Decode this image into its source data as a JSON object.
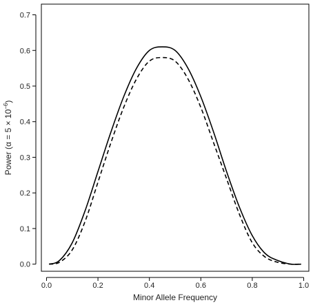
{
  "chart_data": {
    "type": "line",
    "title": "",
    "xlabel": "Minor Allele Frequency",
    "ylabel": "Power (α = 5 × 10⁻⁶)",
    "ylabel_parts": {
      "prefix": "Power (",
      "alpha": "α",
      "eq": " = 5 × 10",
      "exp": "−6",
      "suffix": ")"
    },
    "xlim": [
      -0.02,
      1.02
    ],
    "ylim": [
      -0.02,
      0.73
    ],
    "xticks": [
      "0.0",
      "0.2",
      "0.4",
      "0.6",
      "0.8",
      "1.0"
    ],
    "yticks": [
      "0.0",
      "0.1",
      "0.2",
      "0.3",
      "0.4",
      "0.5",
      "0.6",
      "0.7"
    ],
    "grid": false,
    "series": [
      {
        "style": "solid",
        "color": "#000000",
        "x": [
          0.01,
          0.05,
          0.1,
          0.15,
          0.2,
          0.25,
          0.3,
          0.35,
          0.4,
          0.45,
          0.5,
          0.55,
          0.6,
          0.65,
          0.7,
          0.75,
          0.8,
          0.85,
          0.9,
          0.95,
          0.99
        ],
        "y": [
          0.0,
          0.01,
          0.06,
          0.15,
          0.26,
          0.37,
          0.47,
          0.55,
          0.6,
          0.61,
          0.6,
          0.55,
          0.47,
          0.37,
          0.26,
          0.16,
          0.08,
          0.03,
          0.01,
          0.0,
          0.0
        ]
      },
      {
        "style": "dashed",
        "color": "#000000",
        "x": [
          0.01,
          0.05,
          0.1,
          0.15,
          0.2,
          0.25,
          0.3,
          0.35,
          0.4,
          0.45,
          0.5,
          0.55,
          0.6,
          0.65,
          0.7,
          0.75,
          0.8,
          0.85,
          0.9,
          0.95,
          0.99
        ],
        "y": [
          0.0,
          0.005,
          0.04,
          0.12,
          0.23,
          0.34,
          0.44,
          0.52,
          0.57,
          0.58,
          0.57,
          0.52,
          0.44,
          0.34,
          0.24,
          0.14,
          0.06,
          0.02,
          0.005,
          0.0,
          0.0
        ]
      }
    ]
  }
}
